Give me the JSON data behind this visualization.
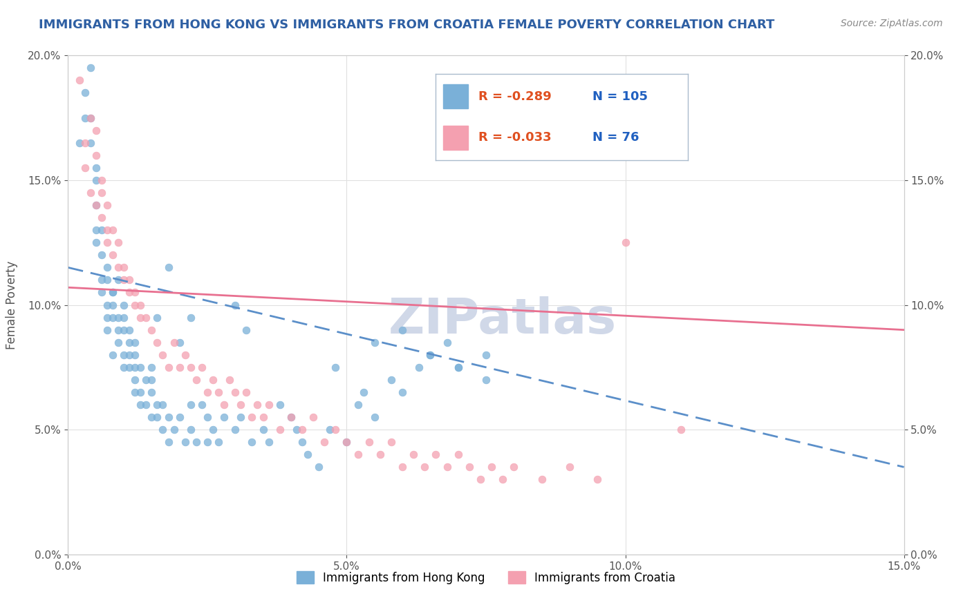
{
  "title": "IMMIGRANTS FROM HONG KONG VS IMMIGRANTS FROM CROATIA FEMALE POVERTY CORRELATION CHART",
  "source": "Source: ZipAtlas.com",
  "xlabel_bottom": "",
  "ylabel": "Female Poverty",
  "watermark": "ZIPatlas",
  "legend_hk": {
    "R": "-0.289",
    "N": "105",
    "color": "#6baed6"
  },
  "legend_cr": {
    "R": "-0.033",
    "N": "76",
    "color": "#fb9a99"
  },
  "xmin": 0.0,
  "xmax": 0.15,
  "ymin": 0.0,
  "ymax": 0.2,
  "hk_scatter_x": [
    0.002,
    0.003,
    0.003,
    0.004,
    0.004,
    0.004,
    0.005,
    0.005,
    0.005,
    0.005,
    0.005,
    0.006,
    0.006,
    0.006,
    0.006,
    0.007,
    0.007,
    0.007,
    0.007,
    0.007,
    0.008,
    0.008,
    0.008,
    0.008,
    0.009,
    0.009,
    0.009,
    0.009,
    0.01,
    0.01,
    0.01,
    0.01,
    0.01,
    0.011,
    0.011,
    0.011,
    0.011,
    0.012,
    0.012,
    0.012,
    0.012,
    0.013,
    0.013,
    0.013,
    0.014,
    0.014,
    0.015,
    0.015,
    0.015,
    0.016,
    0.016,
    0.017,
    0.017,
    0.018,
    0.018,
    0.019,
    0.02,
    0.021,
    0.022,
    0.022,
    0.023,
    0.024,
    0.025,
    0.025,
    0.026,
    0.027,
    0.028,
    0.03,
    0.031,
    0.033,
    0.035,
    0.036,
    0.038,
    0.04,
    0.041,
    0.042,
    0.043,
    0.045,
    0.047,
    0.05,
    0.052,
    0.053,
    0.055,
    0.058,
    0.06,
    0.063,
    0.065,
    0.068,
    0.07,
    0.075,
    0.03,
    0.032,
    0.018,
    0.02,
    0.022,
    0.015,
    0.016,
    0.012,
    0.008,
    0.048,
    0.055,
    0.06,
    0.065,
    0.07,
    0.075
  ],
  "hk_scatter_y": [
    0.165,
    0.185,
    0.175,
    0.195,
    0.165,
    0.175,
    0.155,
    0.14,
    0.13,
    0.125,
    0.15,
    0.11,
    0.12,
    0.105,
    0.13,
    0.115,
    0.1,
    0.095,
    0.11,
    0.09,
    0.105,
    0.095,
    0.1,
    0.08,
    0.095,
    0.085,
    0.09,
    0.11,
    0.08,
    0.09,
    0.1,
    0.075,
    0.095,
    0.085,
    0.075,
    0.08,
    0.09,
    0.08,
    0.07,
    0.085,
    0.075,
    0.065,
    0.075,
    0.06,
    0.07,
    0.06,
    0.065,
    0.055,
    0.07,
    0.06,
    0.055,
    0.06,
    0.05,
    0.055,
    0.045,
    0.05,
    0.055,
    0.045,
    0.06,
    0.05,
    0.045,
    0.06,
    0.055,
    0.045,
    0.05,
    0.045,
    0.055,
    0.05,
    0.055,
    0.045,
    0.05,
    0.045,
    0.06,
    0.055,
    0.05,
    0.045,
    0.04,
    0.035,
    0.05,
    0.045,
    0.06,
    0.065,
    0.055,
    0.07,
    0.065,
    0.075,
    0.08,
    0.085,
    0.075,
    0.08,
    0.1,
    0.09,
    0.115,
    0.085,
    0.095,
    0.075,
    0.095,
    0.065,
    0.105,
    0.075,
    0.085,
    0.09,
    0.08,
    0.075,
    0.07
  ],
  "cr_scatter_x": [
    0.002,
    0.003,
    0.003,
    0.004,
    0.004,
    0.005,
    0.005,
    0.005,
    0.006,
    0.006,
    0.006,
    0.007,
    0.007,
    0.007,
    0.008,
    0.008,
    0.009,
    0.009,
    0.01,
    0.01,
    0.011,
    0.011,
    0.012,
    0.012,
    0.013,
    0.013,
    0.014,
    0.015,
    0.016,
    0.017,
    0.018,
    0.019,
    0.02,
    0.021,
    0.022,
    0.023,
    0.024,
    0.025,
    0.026,
    0.027,
    0.028,
    0.029,
    0.03,
    0.031,
    0.032,
    0.033,
    0.034,
    0.035,
    0.036,
    0.038,
    0.04,
    0.042,
    0.044,
    0.046,
    0.048,
    0.05,
    0.052,
    0.054,
    0.056,
    0.058,
    0.06,
    0.062,
    0.064,
    0.066,
    0.068,
    0.07,
    0.072,
    0.074,
    0.076,
    0.078,
    0.08,
    0.085,
    0.09,
    0.095,
    0.1,
    0.11
  ],
  "cr_scatter_y": [
    0.19,
    0.165,
    0.155,
    0.175,
    0.145,
    0.16,
    0.14,
    0.17,
    0.135,
    0.15,
    0.145,
    0.13,
    0.125,
    0.14,
    0.12,
    0.13,
    0.115,
    0.125,
    0.11,
    0.115,
    0.105,
    0.11,
    0.1,
    0.105,
    0.095,
    0.1,
    0.095,
    0.09,
    0.085,
    0.08,
    0.075,
    0.085,
    0.075,
    0.08,
    0.075,
    0.07,
    0.075,
    0.065,
    0.07,
    0.065,
    0.06,
    0.07,
    0.065,
    0.06,
    0.065,
    0.055,
    0.06,
    0.055,
    0.06,
    0.05,
    0.055,
    0.05,
    0.055,
    0.045,
    0.05,
    0.045,
    0.04,
    0.045,
    0.04,
    0.045,
    0.035,
    0.04,
    0.035,
    0.04,
    0.035,
    0.04,
    0.035,
    0.03,
    0.035,
    0.03,
    0.035,
    0.03,
    0.035,
    0.03,
    0.125,
    0.05
  ],
  "hk_line_x": [
    0.0,
    0.15
  ],
  "hk_line_y": [
    0.115,
    0.035
  ],
  "cr_line_x": [
    0.0,
    0.15
  ],
  "cr_line_y": [
    0.107,
    0.09
  ],
  "bg_color": "#ffffff",
  "scatter_size": 60,
  "title_color": "#2e5fa3",
  "source_color": "#888888",
  "axis_label_color": "#555555",
  "tick_label_color": "#555555",
  "grid_color": "#e0e0e0",
  "watermark_color": "#d0d8e8",
  "hk_color": "#7ab0d8",
  "cr_color": "#f4a0b0",
  "hk_line_color": "#5b8fc9",
  "cr_line_color": "#e87090",
  "legend_box_color": "#ddeeff",
  "legend_border_color": "#aabbcc"
}
